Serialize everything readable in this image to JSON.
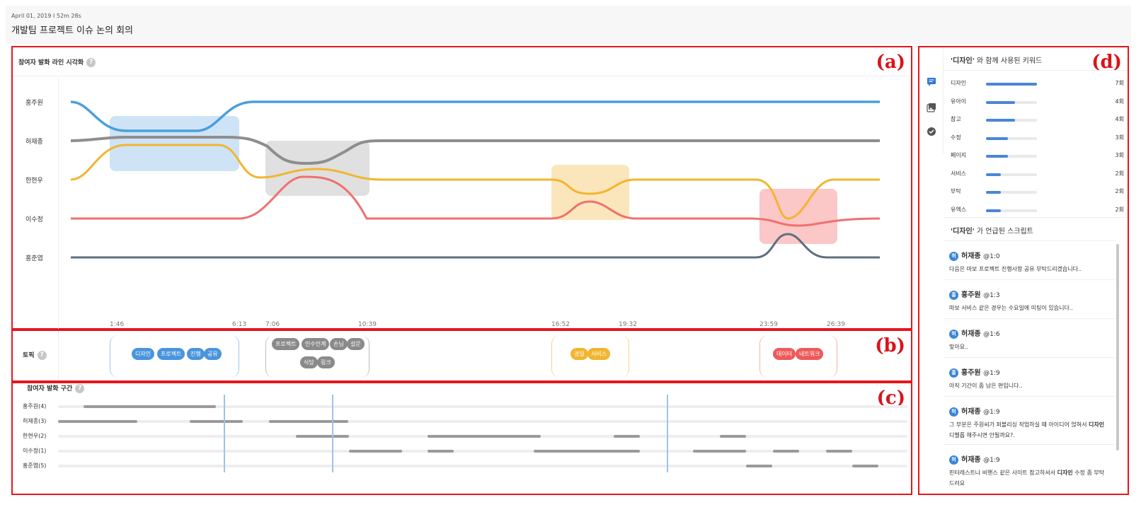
{
  "header": {
    "meta": "April 01, 2019 I 52m 28s",
    "title": "개발팀 프로젝트 이슈 논의 회의"
  },
  "panel_tags": {
    "a": "(a)",
    "b": "(b)",
    "c": "(c)",
    "d": "(d)"
  },
  "panel_a": {
    "title": "참여자 발화 라인 시각화",
    "help": "?",
    "participants": [
      "홍주원",
      "허재종",
      "한현우",
      "이수정",
      "홍준엽"
    ],
    "x_ticks": [
      "1:46",
      "6:13",
      "7:06",
      "10:39",
      "16:52",
      "19:32",
      "23:59",
      "26:39"
    ],
    "colors": {
      "홍주원": "#4a9fdc",
      "허재종": "#8e8e8e",
      "한현우": "#f2b530",
      "이수정": "#f07070",
      "홍준엽": "#5f6f80"
    }
  },
  "panel_b": {
    "label": "토픽",
    "help": "?",
    "topics": [
      {
        "color": "#4a94dc",
        "keywords": [
          "디자인",
          "프로젝트",
          "진행",
          "공유"
        ]
      },
      {
        "color": "#8a8a8a",
        "keywords": [
          "프로젝트",
          "인수인계",
          "손님",
          "설문",
          "식당",
          "링크"
        ]
      },
      {
        "color": "#f2b530",
        "keywords": [
          "경일",
          "서비스"
        ]
      },
      {
        "color": "#ee5a5a",
        "keywords": [
          "데이터",
          "네트워크"
        ]
      }
    ]
  },
  "panel_c": {
    "title": "참여자 발화 구간",
    "help": "?",
    "rows": [
      "홍주원(4)",
      "허재종(3)",
      "한현우(2)",
      "이수정(1)",
      "홍준엽(5)"
    ]
  },
  "panel_d": {
    "icons": [
      "chat-icon",
      "gallery-icon",
      "check-circle-icon"
    ],
    "keyword_title_kw": "'디자인'",
    "keyword_title_rest": " 와 함께 사용된 키워드",
    "keywords": [
      {
        "label": "디자인",
        "count": "7회",
        "value": 7
      },
      {
        "label": "유아이",
        "count": "4회",
        "value": 4
      },
      {
        "label": "참고",
        "count": "4회",
        "value": 4
      },
      {
        "label": "수정",
        "count": "3회",
        "value": 3
      },
      {
        "label": "페이지",
        "count": "3회",
        "value": 3
      },
      {
        "label": "서비스",
        "count": "2회",
        "value": 2
      },
      {
        "label": "부탁",
        "count": "2회",
        "value": 2
      },
      {
        "label": "유엑스",
        "count": "2회",
        "value": 2
      }
    ],
    "script_title_kw": "'디자인'",
    "script_title_rest": " 가 언급된 스크립트",
    "scripts": [
      {
        "avatar": "허",
        "speaker": "허재종",
        "time": "@1:0",
        "text": "다음은 마보 프로젝트 진행사항 공유 부탁드리겠습니다.."
      },
      {
        "avatar": "홍",
        "speaker": "홍주원",
        "time": "@1:3",
        "text": "마보 서비스 같은 경우는 수요일에 미팅이 있습니다.."
      },
      {
        "avatar": "허",
        "speaker": "허재종",
        "time": "@1:6",
        "text": "맞아요.."
      },
      {
        "avatar": "홍",
        "speaker": "홍주원",
        "time": "@1:9",
        "text": "아직 기간이 좀 남은 편입니다.."
      },
      {
        "avatar": "허",
        "speaker": "허재종",
        "time": "@1:9",
        "text_a": "그 부분은 주원씨가 퍼블리싱 작업하실 때 아이디어 얹혀서 ",
        "text_b": "디자인",
        "text_c": " 디벨롭 해주시면 안될까요?."
      },
      {
        "avatar": "허",
        "speaker": "허재종",
        "time": "@1:9",
        "text_a": "핀터레스트나 비핸스 같은 사이트 참고하셔서 ",
        "text_b": "디자인",
        "text_c": " 수정 좀 부탁드려요"
      }
    ]
  }
}
